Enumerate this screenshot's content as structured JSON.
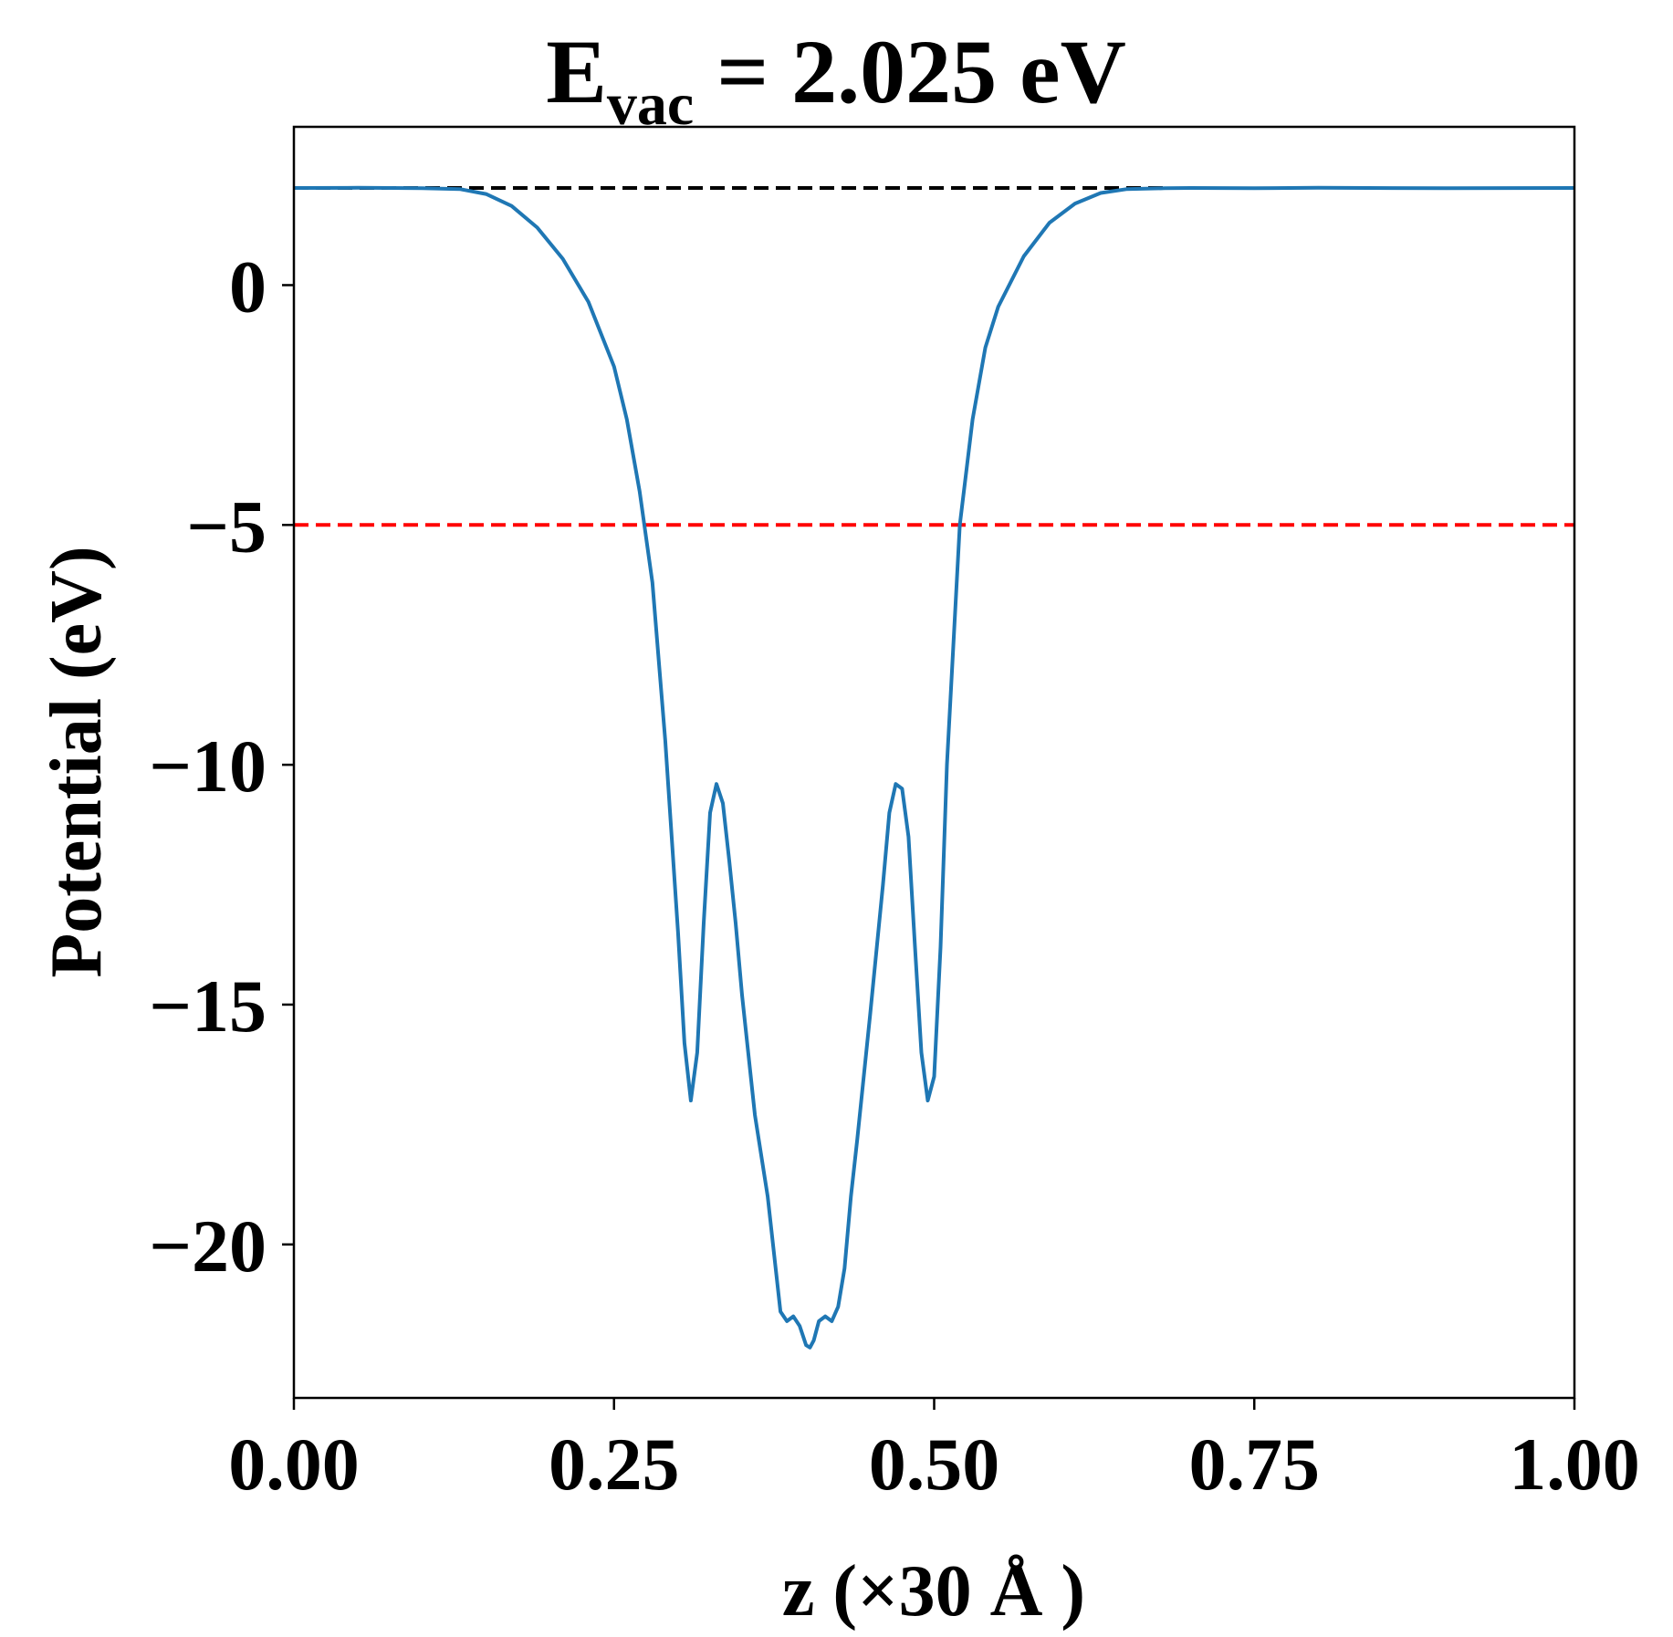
{
  "chart_data": {
    "type": "line",
    "title": {
      "prefix": "E",
      "subscript": "vac",
      "suffix": " = 2.025 eV"
    },
    "xlabel": "z (×30 Å )",
    "ylabel": "Potential (eV)",
    "xlim": [
      0.0,
      1.0
    ],
    "ylim": [
      -23.2,
      3.3
    ],
    "xticks": [
      {
        "value": 0.0,
        "label": "0.00"
      },
      {
        "value": 0.25,
        "label": "0.25"
      },
      {
        "value": 0.5,
        "label": "0.50"
      },
      {
        "value": 0.75,
        "label": "0.75"
      },
      {
        "value": 1.0,
        "label": "1.00"
      }
    ],
    "yticks": [
      {
        "value": 0,
        "label": "0"
      },
      {
        "value": -5,
        "label": "−5"
      },
      {
        "value": -10,
        "label": "−10"
      },
      {
        "value": -15,
        "label": "−15"
      },
      {
        "value": -20,
        "label": "−20"
      }
    ],
    "grid": false,
    "reference_lines": [
      {
        "y": 2.025,
        "x_start": 0.0,
        "x_end": 0.68,
        "color": "#000000",
        "style": "dashed"
      },
      {
        "y": -5.0,
        "x_start": 0.0,
        "x_end": 1.0,
        "color": "#ff0000",
        "style": "dashed"
      }
    ],
    "series": [
      {
        "color": "#1f77b4",
        "x": [
          0.0,
          0.05,
          0.1,
          0.13,
          0.15,
          0.17,
          0.19,
          0.21,
          0.23,
          0.25,
          0.26,
          0.27,
          0.28,
          0.29,
          0.3,
          0.305,
          0.31,
          0.315,
          0.32,
          0.325,
          0.33,
          0.335,
          0.34,
          0.345,
          0.35,
          0.36,
          0.37,
          0.38,
          0.385,
          0.39,
          0.395,
          0.4,
          0.403,
          0.406,
          0.41,
          0.415,
          0.42,
          0.425,
          0.43,
          0.435,
          0.44,
          0.45,
          0.46,
          0.465,
          0.47,
          0.475,
          0.48,
          0.485,
          0.49,
          0.495,
          0.5,
          0.505,
          0.51,
          0.52,
          0.53,
          0.54,
          0.55,
          0.57,
          0.59,
          0.61,
          0.63,
          0.65,
          0.68,
          0.7,
          0.75,
          0.8,
          0.9,
          1.0
        ],
        "y": [
          2.025,
          2.03,
          2.02,
          2.0,
          1.9,
          1.65,
          1.2,
          0.55,
          -0.35,
          -1.7,
          -2.8,
          -4.3,
          -6.2,
          -9.5,
          -13.5,
          -15.8,
          -17.0,
          -16.0,
          -13.3,
          -11.0,
          -10.4,
          -10.8,
          -12.0,
          -13.3,
          -14.8,
          -17.3,
          -19.0,
          -21.4,
          -21.6,
          -21.5,
          -21.7,
          -22.1,
          -22.15,
          -22.0,
          -21.6,
          -21.5,
          -21.6,
          -21.3,
          -20.5,
          -19.0,
          -17.8,
          -15.2,
          -12.5,
          -11.0,
          -10.4,
          -10.5,
          -11.5,
          -13.8,
          -16.0,
          -17.0,
          -16.5,
          -13.8,
          -10.0,
          -5.0,
          -2.8,
          -1.3,
          -0.45,
          0.6,
          1.3,
          1.7,
          1.92,
          2.0,
          2.02,
          2.025,
          2.02,
          2.03,
          2.02,
          2.025
        ]
      }
    ]
  }
}
